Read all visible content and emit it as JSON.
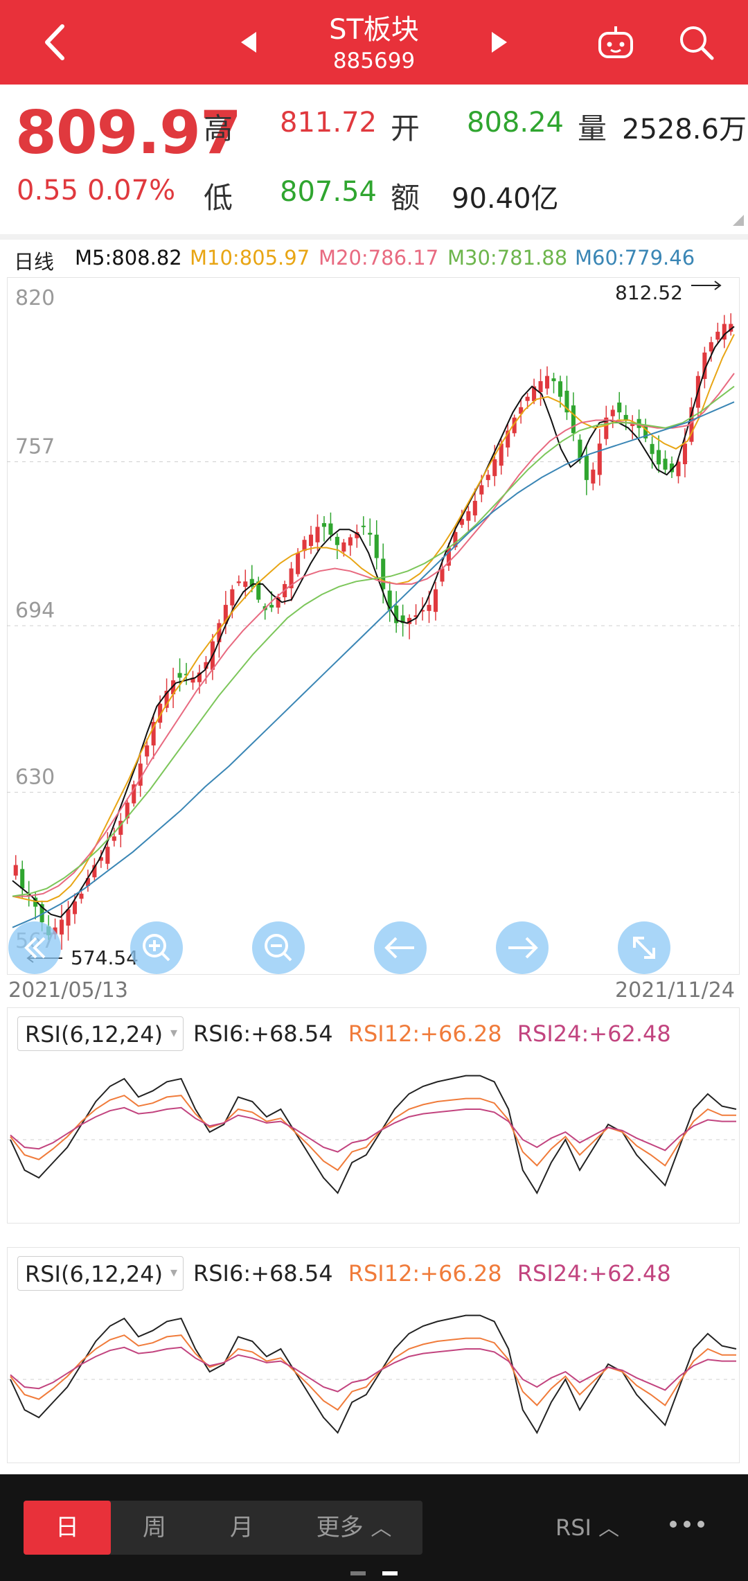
{
  "header": {
    "title": "ST板块",
    "code": "885699"
  },
  "quote": {
    "price": "809.97",
    "change": "0.55",
    "change_pct": "0.07%",
    "high_label": "高",
    "high": "811.72",
    "open_label": "开",
    "open": "808.24",
    "volume_label": "量",
    "volume": "2528.6万",
    "low_label": "低",
    "low": "807.54",
    "amount_label": "额",
    "amount": "90.40亿"
  },
  "ma_bar": {
    "period": "日线",
    "m5": "M5:808.82",
    "m10": "M10:805.97",
    "m20": "M20:786.17",
    "m30": "M30:781.88",
    "m60": "M60:779.46"
  },
  "colors": {
    "header": "#e8313a",
    "up": "#e0393e",
    "down": "#2fa52f",
    "m5": "#111111",
    "m10": "#e8a514",
    "m20": "#e86a80",
    "m30": "#7cc65a",
    "m60": "#3a86b5",
    "rsi6": "#222222",
    "rsi12": "#f07b3a",
    "rsi24": "#c2447f"
  },
  "chart_data": [
    {
      "type": "candlestick",
      "period": "daily",
      "x_start": "2021/05/13",
      "x_end": "2021/11/24",
      "y_ticks": [
        "820",
        "757",
        "694",
        "630",
        "567"
      ],
      "ylim": [
        567,
        820
      ],
      "grid": true,
      "max_label": "812.52",
      "min_label": "574.54",
      "close": [
        602,
        593,
        590,
        586,
        580,
        575,
        578,
        581,
        585,
        588,
        591,
        597,
        602,
        605,
        609,
        613,
        619,
        626,
        633,
        641,
        648,
        657,
        664,
        669,
        673,
        674,
        675,
        674,
        676,
        680,
        688,
        695,
        702,
        708,
        711,
        711,
        709,
        704,
        700,
        701,
        705,
        710,
        716,
        722,
        727,
        729,
        732,
        732,
        729,
        725,
        726,
        728,
        730,
        732,
        729,
        720,
        708,
        700,
        695,
        695,
        697,
        698,
        700,
        702,
        708,
        716,
        724,
        730,
        735,
        738,
        742,
        748,
        752,
        758,
        764,
        769,
        774,
        778,
        782,
        786,
        788,
        790,
        788,
        782,
        776,
        768,
        758,
        750,
        754,
        764,
        774,
        777,
        776,
        773,
        772,
        770,
        766,
        760,
        756,
        754,
        753,
        757,
        764,
        778,
        790,
        799,
        803,
        807,
        810,
        810
      ],
      "ma": {
        "M5": [
          596,
          593,
          590,
          586,
          583,
          582,
          586,
          592,
          598,
          604,
          612,
          622,
          632,
          642,
          653,
          663,
          668,
          672,
          673,
          674,
          677,
          684,
          693,
          701,
          707,
          710,
          710,
          706,
          703,
          704,
          711,
          718,
          724,
          728,
          731,
          731,
          729,
          722,
          712,
          702,
          696,
          695,
          697,
          703,
          712,
          722,
          731,
          738,
          745,
          752,
          760,
          768,
          776,
          782,
          786,
          783,
          773,
          762,
          755,
          758,
          766,
          772,
          773,
          772,
          770,
          766,
          760,
          754,
          752,
          756,
          768,
          781,
          793,
          801,
          806,
          809
        ],
        "M10": [
          590,
          589,
          588,
          588,
          590,
          594,
          600,
          608,
          617,
          626,
          635,
          645,
          654,
          662,
          669,
          675,
          682,
          688,
          694,
          700,
          705,
          710,
          714,
          718,
          721,
          723,
          724,
          724,
          723,
          720,
          716,
          713,
          711,
          710,
          711,
          714,
          719,
          725,
          732,
          740,
          748,
          756,
          764,
          771,
          777,
          781,
          782,
          780,
          776,
          772,
          770,
          771,
          773,
          773,
          771,
          767,
          764,
          762,
          765,
          774,
          786,
          797,
          806
        ],
        "M20": [
          590,
          590,
          591,
          594,
          599,
          606,
          614,
          623,
          632,
          642,
          651,
          660,
          669,
          677,
          685,
          692,
          698,
          704,
          709,
          713,
          715,
          716,
          715,
          713,
          711,
          710,
          710,
          712,
          716,
          722,
          729,
          736,
          744,
          752,
          759,
          765,
          769,
          772,
          773,
          773,
          772,
          771,
          770,
          770,
          771,
          776,
          783,
          791
        ],
        "M30": [
          590,
          591,
          593,
          597,
          602,
          608,
          615,
          623,
          631,
          640,
          649,
          658,
          667,
          675,
          683,
          690,
          697,
          702,
          706,
          709,
          711,
          712,
          713,
          715,
          718,
          722,
          727,
          733,
          740,
          747,
          754,
          760,
          765,
          769,
          771,
          772,
          772,
          771,
          770,
          772,
          776,
          781,
          786
        ],
        "M60": [
          578,
          582,
          587,
          593,
          600,
          607,
          615,
          623,
          632,
          640,
          649,
          658,
          667,
          676,
          685,
          694,
          703,
          712,
          721,
          730,
          738,
          745,
          751,
          756,
          760,
          763,
          766,
          769,
          772,
          776,
          780
        ]
      }
    },
    {
      "type": "line",
      "indicator": "RSI(6,12,24)",
      "selector": "RSI(6,12,24)",
      "values_text": {
        "rsi6": "RSI6:+68.54",
        "rsi12": "RSI12:+66.28",
        "rsi24": "RSI24:+62.48"
      },
      "ylim": [
        0,
        100
      ],
      "series": [
        {
          "name": "RSI6",
          "values": [
            50,
            30,
            25,
            35,
            45,
            60,
            75,
            85,
            90,
            78,
            82,
            88,
            90,
            70,
            55,
            60,
            78,
            75,
            65,
            70,
            55,
            40,
            25,
            15,
            35,
            40,
            55,
            70,
            80,
            85,
            88,
            90,
            92,
            92,
            88,
            70,
            30,
            15,
            35,
            50,
            30,
            45,
            60,
            55,
            40,
            30,
            20,
            45,
            70,
            80,
            72,
            70
          ]
        },
        {
          "name": "RSI12",
          "values": [
            52,
            40,
            37,
            44,
            52,
            62,
            70,
            76,
            79,
            72,
            74,
            78,
            79,
            67,
            58,
            61,
            70,
            68,
            62,
            64,
            55,
            46,
            36,
            30,
            42,
            45,
            56,
            64,
            70,
            73,
            75,
            76,
            77,
            77,
            74,
            63,
            42,
            33,
            44,
            52,
            40,
            49,
            58,
            55,
            46,
            40,
            33,
            48,
            62,
            70,
            66,
            66
          ]
        },
        {
          "name": "RSI24",
          "values": [
            53,
            45,
            44,
            48,
            54,
            60,
            65,
            69,
            71,
            67,
            68,
            70,
            71,
            64,
            59,
            61,
            66,
            64,
            61,
            62,
            57,
            51,
            45,
            42,
            48,
            50,
            56,
            61,
            65,
            67,
            68,
            69,
            70,
            70,
            68,
            62,
            50,
            45,
            51,
            55,
            48,
            53,
            58,
            56,
            51,
            47,
            43,
            52,
            59,
            63,
            62,
            62
          ]
        }
      ]
    }
  ],
  "toolbar": {
    "tab_day": "日",
    "tab_week": "周",
    "tab_month": "月",
    "tab_more": "更多",
    "indicator": "RSI"
  }
}
